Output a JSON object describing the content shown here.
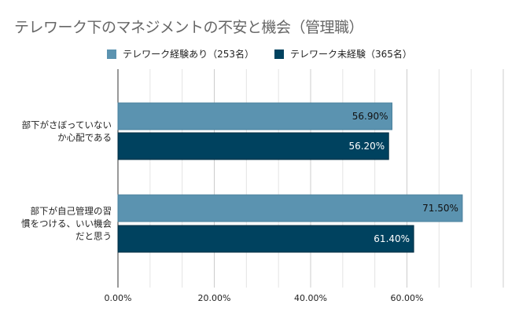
{
  "chart_data": {
    "type": "bar",
    "orientation": "horizontal",
    "title": "テレワーク下のマネジメントの不安と機会（管理職）",
    "categories": [
      "部下がさぼっていないか心配である",
      "部下が自己管理の習慣をつける、いい機会だと思う"
    ],
    "category_lines": [
      [
        "部下がさぼっていない",
        "か心配である"
      ],
      [
        "部下が自己管理の習",
        "慣をつける、いい機会",
        "だと思う"
      ]
    ],
    "series": [
      {
        "name": "テレワーク経験あり（253名）",
        "values": [
          56.9,
          71.5
        ],
        "labels": [
          "56.90%",
          "71.50%"
        ],
        "color": "#5b93b0"
      },
      {
        "name": "テレワーク未経験（365名）",
        "values": [
          56.2,
          61.4
        ],
        "labels": [
          "56.20%",
          "61.40%"
        ],
        "color": "#00425f"
      }
    ],
    "xlim": [
      0,
      80
    ],
    "xticks": [
      "0.00%",
      "20.00%",
      "40.00%",
      "60.00%"
    ],
    "grid": true,
    "legend": "top"
  }
}
